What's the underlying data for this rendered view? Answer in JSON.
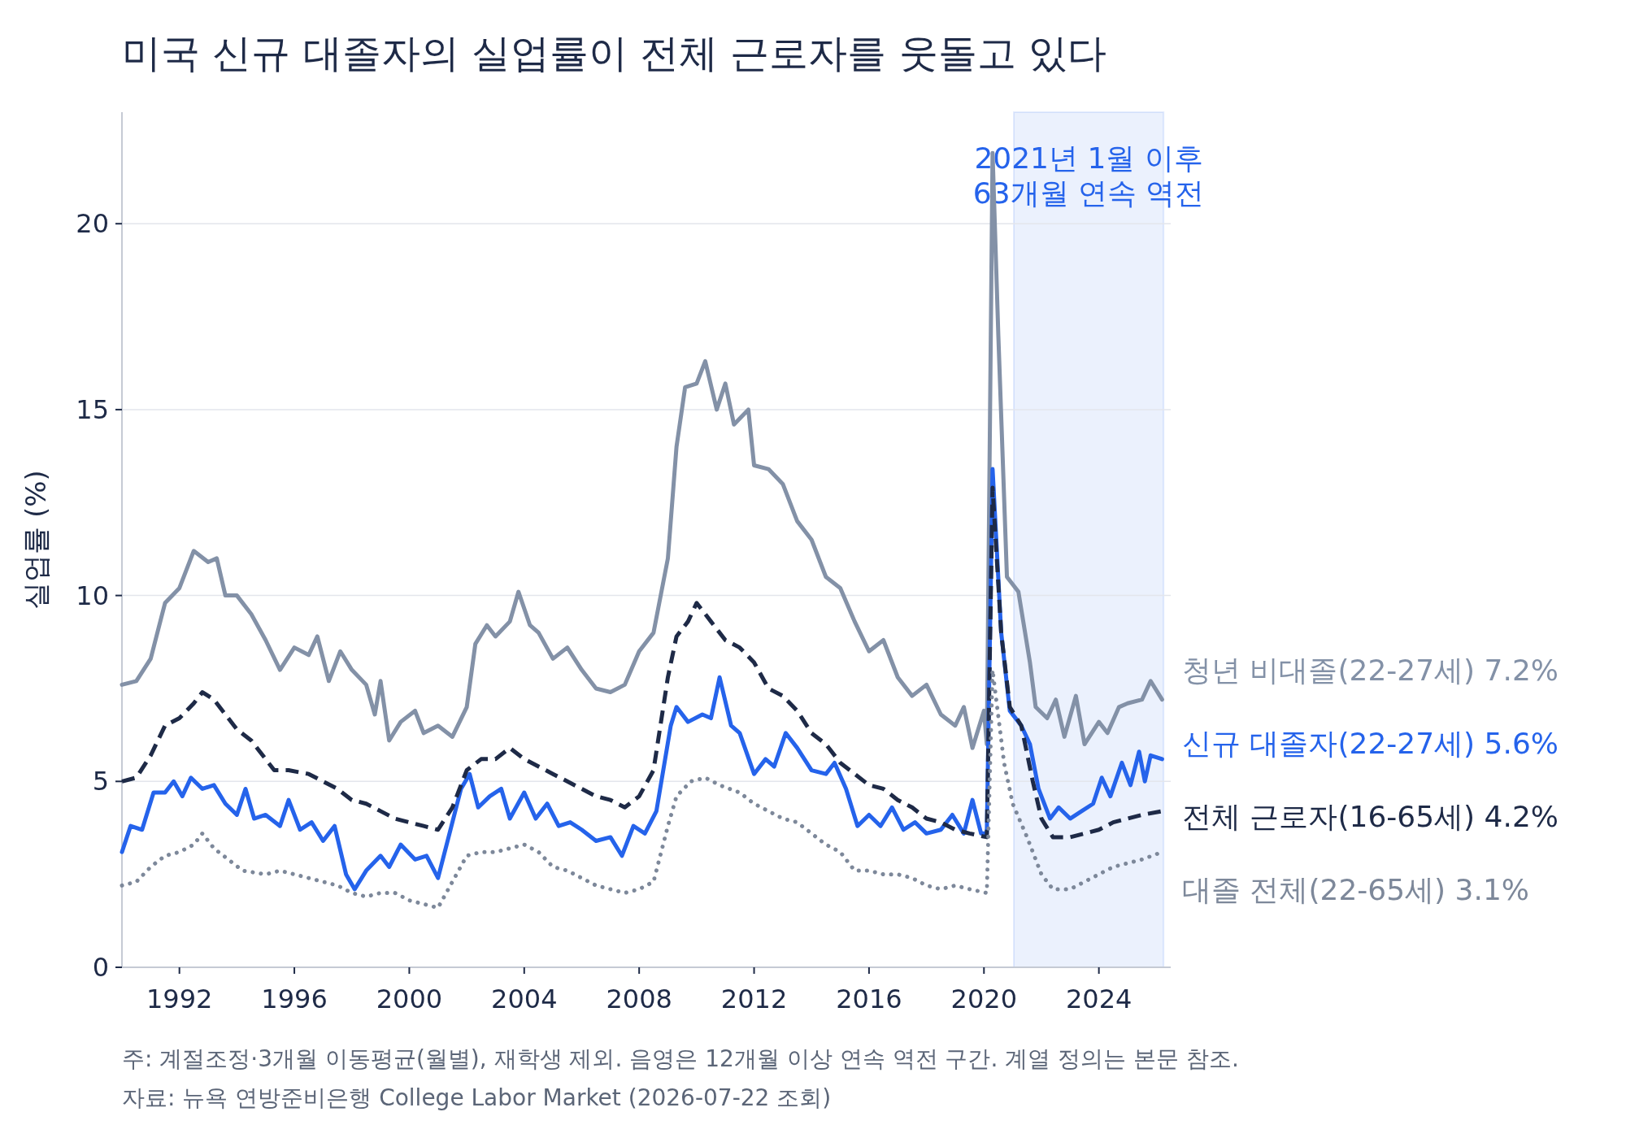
{
  "chart_data": {
    "type": "line",
    "title": "미국 신규 대졸자의 실업률이 전체 근로자를 웃돌고 있다",
    "ylabel": "실업률 (%)",
    "xlim": [
      1990,
      2026.5
    ],
    "xticks": [
      1992,
      1996,
      2000,
      2004,
      2008,
      2012,
      2016,
      2020,
      2024
    ],
    "ylim": [
      0,
      23
    ],
    "yticks": [
      0,
      5,
      10,
      15,
      20
    ],
    "grid": "y",
    "bands": [
      {
        "axis": "x",
        "from": 2021.04,
        "to": 2026.25,
        "label": "2021년 1월 이후\n63개월 연속 역전",
        "color": "#2563eb"
      }
    ],
    "annotations": [
      "주: 계절조정·3개월 이동평균(월별), 재학생 제외. 음영은 12개월 이상 연속 역전 구간. 계열 정의는 본문 참조.",
      "자료: 뉴욕 연방준비은행 College Labor Market (2026-07-22 조회)"
    ],
    "series": [
      {
        "name": "청년 비대졸(22-27세) 7.2%",
        "color": "#8391a7",
        "line_style": "solid",
        "x": [
          1990,
          1990.5,
          1991,
          1991.5,
          1992,
          1992.5,
          1993,
          1993.3,
          1993.6,
          1994,
          1994.5,
          1995,
          1995.5,
          1996,
          1996.5,
          1996.8,
          1997.2,
          1997.6,
          1998,
          1998.5,
          1998.8,
          1999,
          1999.3,
          1999.7,
          2000.2,
          2000.5,
          2001,
          2001.5,
          2002,
          2002.3,
          2002.7,
          2003,
          2003.5,
          2003.8,
          2004.2,
          2004.5,
          2005,
          2005.5,
          2006,
          2006.5,
          2007,
          2007.5,
          2008,
          2008.5,
          2009,
          2009.3,
          2009.6,
          2010,
          2010.3,
          2010.7,
          2011,
          2011.3,
          2011.8,
          2012,
          2012.5,
          2013,
          2013.5,
          2014,
          2014.5,
          2015,
          2015.5,
          2016,
          2016.5,
          2017,
          2017.5,
          2018,
          2018.5,
          2019,
          2019.3,
          2019.6,
          2020,
          2020.1,
          2020.3,
          2020.5,
          2020.8,
          2021.2,
          2021.6,
          2021.8,
          2022.2,
          2022.5,
          2022.8,
          2023.2,
          2023.5,
          2024,
          2024.3,
          2024.7,
          2025,
          2025.5,
          2025.8,
          2026.2
        ],
        "values": [
          7.6,
          7.7,
          8.3,
          9.8,
          10.2,
          11.2,
          10.9,
          11.0,
          10.0,
          10.0,
          9.5,
          8.8,
          8.0,
          8.6,
          8.4,
          8.9,
          7.7,
          8.5,
          8.0,
          7.6,
          6.8,
          7.7,
          6.1,
          6.6,
          6.9,
          6.3,
          6.5,
          6.2,
          7.0,
          8.7,
          9.2,
          8.9,
          9.3,
          10.1,
          9.2,
          9.0,
          8.3,
          8.6,
          8.0,
          7.5,
          7.4,
          7.6,
          8.5,
          9.0,
          11.0,
          14.0,
          15.6,
          15.7,
          16.3,
          15.0,
          15.7,
          14.6,
          15.0,
          13.5,
          13.4,
          13.0,
          12.0,
          11.5,
          10.5,
          10.2,
          9.3,
          8.5,
          8.8,
          7.8,
          7.3,
          7.6,
          6.8,
          6.5,
          7.0,
          5.9,
          6.9,
          6.0,
          21.9,
          17.0,
          10.5,
          10.1,
          8.2,
          7.0,
          6.7,
          7.2,
          6.2,
          7.3,
          6.0,
          6.6,
          6.3,
          7.0,
          7.1,
          7.2,
          7.7,
          7.2
        ]
      },
      {
        "name": "신규 대졸자(22-27세) 5.6%",
        "color": "#2563eb",
        "line_style": "solid",
        "x": [
          1990,
          1990.3,
          1990.7,
          1991.1,
          1991.5,
          1991.8,
          1992.1,
          1992.4,
          1992.8,
          1993.2,
          1993.6,
          1994,
          1994.3,
          1994.6,
          1995,
          1995.5,
          1995.8,
          1996.2,
          1996.6,
          1997,
          1997.4,
          1997.8,
          1998.1,
          1998.5,
          1999,
          1999.3,
          1999.7,
          2000.2,
          2000.6,
          2001,
          2001.4,
          2001.8,
          2002.1,
          2002.4,
          2002.8,
          2003.2,
          2003.5,
          2004,
          2004.4,
          2004.8,
          2005.2,
          2005.6,
          2006,
          2006.5,
          2007,
          2007.4,
          2007.8,
          2008.2,
          2008.6,
          2009.1,
          2009.3,
          2009.7,
          2010.2,
          2010.5,
          2010.8,
          2011.2,
          2011.5,
          2012,
          2012.4,
          2012.7,
          2013.1,
          2013.5,
          2014,
          2014.5,
          2014.8,
          2015.2,
          2015.6,
          2016,
          2016.4,
          2016.8,
          2017.2,
          2017.6,
          2018,
          2018.5,
          2018.9,
          2019.3,
          2019.6,
          2019.9,
          2020.1,
          2020.3,
          2020.6,
          2020.9,
          2021.3,
          2021.6,
          2021.9,
          2022.3,
          2022.6,
          2023,
          2023.4,
          2023.8,
          2024.1,
          2024.4,
          2024.8,
          2025.1,
          2025.4,
          2025.6,
          2025.8,
          2026.2
        ],
        "values": [
          3.1,
          3.8,
          3.7,
          4.7,
          4.7,
          5.0,
          4.6,
          5.1,
          4.8,
          4.9,
          4.4,
          4.1,
          4.8,
          4.0,
          4.1,
          3.8,
          4.5,
          3.7,
          3.9,
          3.4,
          3.8,
          2.5,
          2.1,
          2.6,
          3.0,
          2.7,
          3.3,
          2.9,
          3.0,
          2.4,
          3.6,
          4.8,
          5.2,
          4.3,
          4.6,
          4.8,
          4.0,
          4.7,
          4.0,
          4.4,
          3.8,
          3.9,
          3.7,
          3.4,
          3.5,
          3.0,
          3.8,
          3.6,
          4.2,
          6.5,
          7.0,
          6.6,
          6.8,
          6.7,
          7.8,
          6.5,
          6.3,
          5.2,
          5.6,
          5.4,
          6.3,
          5.9,
          5.3,
          5.2,
          5.5,
          4.8,
          3.8,
          4.1,
          3.8,
          4.3,
          3.7,
          3.9,
          3.6,
          3.7,
          4.1,
          3.6,
          4.5,
          3.6,
          3.6,
          13.4,
          9.0,
          6.9,
          6.5,
          6.0,
          4.8,
          4.0,
          4.3,
          4.0,
          4.2,
          4.4,
          5.1,
          4.6,
          5.5,
          4.9,
          5.8,
          5.0,
          5.7,
          5.6
        ]
      },
      {
        "name": "전체 근로자(16-65세) 4.2%",
        "color": "#1e2a47",
        "line_style": "dashed",
        "x": [
          1990,
          1990.5,
          1991,
          1991.5,
          1992,
          1992.5,
          1992.8,
          1993.2,
          1993.6,
          1994,
          1994.5,
          1995,
          1995.3,
          1995.8,
          1996.5,
          1997,
          1997.5,
          1998,
          1998.5,
          1999,
          1999.5,
          2000,
          2000.5,
          2001,
          2001.5,
          2002,
          2002.5,
          2003,
          2003.5,
          2004,
          2004.5,
          2005,
          2005.5,
          2006,
          2006.5,
          2007,
          2007.5,
          2008,
          2008.5,
          2009,
          2009.3,
          2009.7,
          2010,
          2010.5,
          2011,
          2011.5,
          2012,
          2012.5,
          2013,
          2013.5,
          2014,
          2014.5,
          2015,
          2015.5,
          2016,
          2016.5,
          2017,
          2017.5,
          2018,
          2018.5,
          2019,
          2019.5,
          2020.1,
          2020.3,
          2020.6,
          2020.9,
          2021.3,
          2021.7,
          2022,
          2022.4,
          2023,
          2023.5,
          2024,
          2024.5,
          2025,
          2025.5,
          2026.2
        ],
        "values": [
          5.0,
          5.1,
          5.7,
          6.5,
          6.7,
          7.1,
          7.4,
          7.2,
          6.8,
          6.4,
          6.1,
          5.6,
          5.3,
          5.3,
          5.2,
          5.0,
          4.8,
          4.5,
          4.4,
          4.2,
          4.0,
          3.9,
          3.8,
          3.7,
          4.3,
          5.3,
          5.6,
          5.6,
          5.9,
          5.6,
          5.4,
          5.2,
          5.0,
          4.8,
          4.6,
          4.5,
          4.3,
          4.6,
          5.3,
          7.8,
          8.9,
          9.3,
          9.8,
          9.3,
          8.8,
          8.6,
          8.2,
          7.5,
          7.3,
          6.9,
          6.3,
          6.0,
          5.5,
          5.2,
          4.9,
          4.8,
          4.5,
          4.3,
          4.0,
          3.9,
          3.7,
          3.6,
          3.5,
          12.9,
          9.0,
          7.0,
          6.5,
          5.0,
          4.0,
          3.5,
          3.5,
          3.6,
          3.7,
          3.9,
          4.0,
          4.1,
          4.2
        ]
      },
      {
        "name": "대졸 전체(22-65세) 3.1%",
        "color": "#7d889a",
        "line_style": "dotted",
        "x": [
          1990,
          1990.5,
          1991,
          1991.5,
          1992,
          1992.5,
          1992.8,
          1993.2,
          1993.7,
          1994.2,
          1995,
          1995.5,
          1996,
          1996.5,
          1997,
          1997.5,
          1998,
          1998.5,
          1999,
          1999.5,
          2000,
          2000.5,
          2001,
          2001.5,
          2002,
          2002.5,
          2003,
          2003.5,
          2004,
          2004.5,
          2005,
          2005.5,
          2006,
          2006.5,
          2007,
          2007.5,
          2008,
          2008.5,
          2009,
          2009.3,
          2009.8,
          2010.3,
          2010.8,
          2011.5,
          2012,
          2012.5,
          2013,
          2013.5,
          2014,
          2014.5,
          2015,
          2015.5,
          2016,
          2016.5,
          2017,
          2017.5,
          2018,
          2018.5,
          2019,
          2019.5,
          2020.1,
          2020.3,
          2020.7,
          2021,
          2021.5,
          2022,
          2022.4,
          2023,
          2023.5,
          2024,
          2024.5,
          2025,
          2025.5,
          2026.2
        ],
        "values": [
          2.2,
          2.3,
          2.7,
          3.0,
          3.1,
          3.3,
          3.6,
          3.2,
          2.9,
          2.6,
          2.5,
          2.6,
          2.5,
          2.4,
          2.3,
          2.2,
          2.0,
          1.9,
          2.0,
          2.0,
          1.8,
          1.7,
          1.6,
          2.3,
          3.0,
          3.1,
          3.1,
          3.2,
          3.3,
          3.1,
          2.7,
          2.6,
          2.4,
          2.2,
          2.1,
          2.0,
          2.1,
          2.3,
          3.8,
          4.6,
          5.0,
          5.1,
          4.9,
          4.7,
          4.4,
          4.2,
          4.0,
          3.9,
          3.6,
          3.3,
          3.1,
          2.6,
          2.6,
          2.5,
          2.5,
          2.4,
          2.2,
          2.1,
          2.2,
          2.1,
          2.0,
          8.0,
          5.5,
          4.4,
          3.5,
          2.5,
          2.1,
          2.1,
          2.3,
          2.5,
          2.7,
          2.8,
          2.9,
          3.1
        ]
      }
    ]
  }
}
